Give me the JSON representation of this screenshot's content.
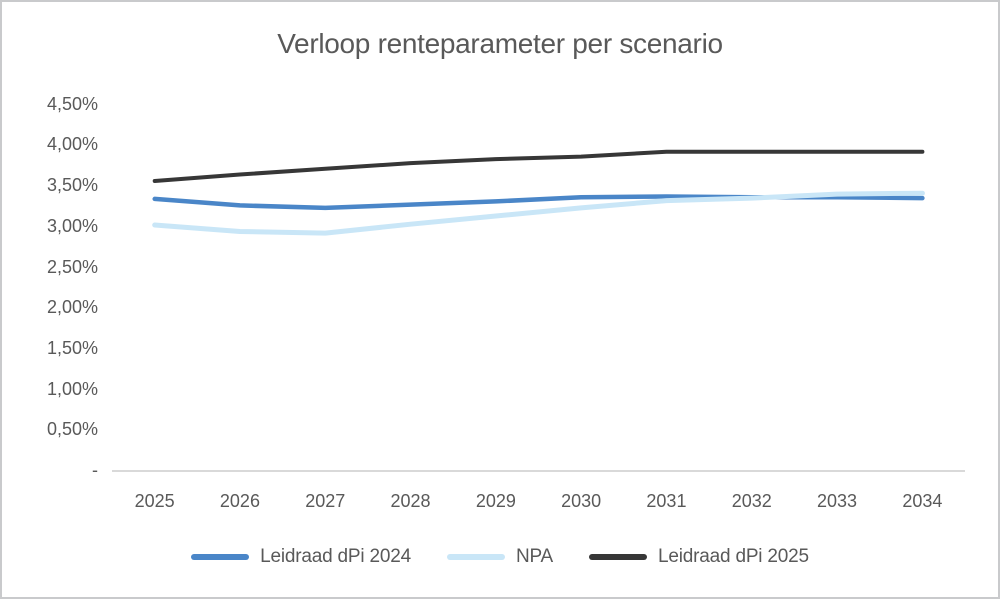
{
  "chart_data": {
    "type": "line",
    "title": "Verloop renteparameter per scenario",
    "categories": [
      "2025",
      "2026",
      "2027",
      "2028",
      "2029",
      "2030",
      "2031",
      "2032",
      "2033",
      "2034"
    ],
    "series": [
      {
        "name": "Leidraad dPi 2024",
        "color": "#4a86c8",
        "stroke_width": 4.5,
        "values": [
          3.33,
          3.25,
          3.22,
          3.26,
          3.3,
          3.35,
          3.36,
          3.35,
          3.35,
          3.34
        ]
      },
      {
        "name": "NPA",
        "color": "#c9e6f7",
        "stroke_width": 5,
        "values": [
          3.01,
          2.93,
          2.91,
          3.02,
          3.12,
          3.22,
          3.31,
          3.34,
          3.39,
          3.4
        ]
      },
      {
        "name": "Leidraad dPi 2025",
        "color": "#373737",
        "stroke_width": 4,
        "values": [
          3.55,
          3.63,
          3.7,
          3.77,
          3.82,
          3.85,
          3.91,
          3.91,
          3.91,
          3.91
        ]
      }
    ],
    "y_axis": {
      "unit": "%",
      "ticks": [
        {
          "label": "4,50%",
          "value": 4.5
        },
        {
          "label": "4,00%",
          "value": 4.0
        },
        {
          "label": "3,50%",
          "value": 3.5
        },
        {
          "label": "3,00%",
          "value": 3.0
        },
        {
          "label": "2,50%",
          "value": 2.5
        },
        {
          "label": "2,00%",
          "value": 2.0
        },
        {
          "label": "1,50%",
          "value": 1.5
        },
        {
          "label": "1,00%",
          "value": 1.0
        },
        {
          "label": "0,50%",
          "value": 0.5
        },
        {
          "label": "-",
          "value": 0.0
        }
      ],
      "min": 0,
      "max": 4.5
    },
    "grid": false,
    "legend_position": "bottom",
    "axis_line_color": "#d9d9d9",
    "text_color": "#595959"
  }
}
